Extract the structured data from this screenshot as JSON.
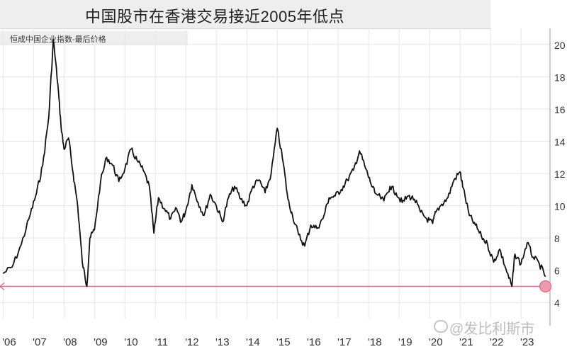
{
  "header": {
    "title": "中国股市在香港交易接近2005年低点",
    "subtitle": "恒成中国企业指数-最后价格"
  },
  "watermark": {
    "text": "@发比利斯市"
  },
  "colors": {
    "line": "#111111",
    "baseline": "#d96a7a",
    "marker": "#f19aac",
    "grid": "#e6e6e6"
  },
  "chart_data": {
    "type": "line",
    "title": "中国股市在香港交易接近2005年低点",
    "subtitle": "恒成中国企业指数-最后价格",
    "xlabel": "",
    "ylabel": "",
    "ylim": [
      3000,
      21000
    ],
    "y_ticks": [
      4000,
      6000,
      8000,
      10000,
      12000,
      14000,
      16000,
      18000,
      20000
    ],
    "y_tick_labels": [
      "4",
      "6",
      "8",
      "10",
      "12",
      "14",
      "16",
      "18",
      "20"
    ],
    "x_ticks": [
      "'06",
      "'07",
      "'08",
      "'09",
      "'10",
      "'11",
      "'12",
      "'13",
      "'14",
      "'15",
      "'16",
      "'17",
      "'18",
      "'19",
      "'20",
      "'21",
      "'22",
      "'23"
    ],
    "x_tick_positions": [
      2006.2,
      2007.2,
      2008.2,
      2009.2,
      2010.2,
      2011.2,
      2012.2,
      2013.2,
      2014.2,
      2015.2,
      2016.2,
      2017.2,
      2018.2,
      2019.2,
      2020.2,
      2021.2,
      2022.2,
      2023.2
    ],
    "grid": true,
    "baseline_value": 5000,
    "series": [
      {
        "x": [
          2006.0,
          2006.3,
          2006.6,
          2006.9,
          2007.1,
          2007.3,
          2007.5,
          2007.65,
          2007.8,
          2007.9,
          2008.0,
          2008.15,
          2008.3,
          2008.45,
          2008.6,
          2008.75,
          2008.85,
          2009.0,
          2009.2,
          2009.4,
          2009.6,
          2009.8,
          2010.0,
          2010.2,
          2010.4,
          2010.6,
          2010.8,
          2010.95,
          2011.1,
          2011.3,
          2011.5,
          2011.7,
          2011.85,
          2012.0,
          2012.2,
          2012.4,
          2012.6,
          2012.8,
          2013.0,
          2013.2,
          2013.4,
          2013.6,
          2013.8,
          2014.0,
          2014.2,
          2014.4,
          2014.6,
          2014.8,
          2015.0,
          2015.2,
          2015.35,
          2015.5,
          2015.7,
          2015.9,
          2016.1,
          2016.3,
          2016.5,
          2016.7,
          2016.9,
          2017.1,
          2017.3,
          2017.5,
          2017.7,
          2017.9,
          2018.05,
          2018.2,
          2018.5,
          2018.7,
          2018.9,
          2019.1,
          2019.3,
          2019.5,
          2019.7,
          2019.9,
          2020.1,
          2020.2,
          2020.4,
          2020.6,
          2020.8,
          2021.0,
          2021.1,
          2021.3,
          2021.5,
          2021.7,
          2021.9,
          2022.1,
          2022.3,
          2022.5,
          2022.7,
          2022.8,
          2023.0,
          2023.2,
          2023.4,
          2023.6,
          2023.8
        ],
        "values": [
          5800,
          6200,
          7600,
          9500,
          10800,
          12500,
          15500,
          20300,
          17500,
          15000,
          13500,
          14200,
          12000,
          10000,
          6500,
          5000,
          8000,
          8500,
          11500,
          13000,
          12500,
          11500,
          12300,
          13500,
          12800,
          12200,
          11200,
          8300,
          10500,
          9800,
          9200,
          9800,
          9000,
          9700,
          11300,
          10200,
          9400,
          10700,
          10000,
          9000,
          10500,
          11200,
          10400,
          10000,
          11200,
          11600,
          10800,
          12000,
          14800,
          12600,
          10400,
          9400,
          8200,
          7500,
          8800,
          8600,
          9200,
          10500,
          10600,
          11000,
          11600,
          12200,
          13400,
          12300,
          11500,
          10800,
          10300,
          11200,
          10800,
          10200,
          10600,
          10400,
          9600,
          9200,
          8900,
          9600,
          10100,
          10500,
          11600,
          12100,
          11100,
          9400,
          8800,
          8100,
          7600,
          6500,
          7300,
          6100,
          5000,
          7000,
          6400,
          7700,
          6800,
          6400,
          5600
        ]
      }
    ]
  }
}
